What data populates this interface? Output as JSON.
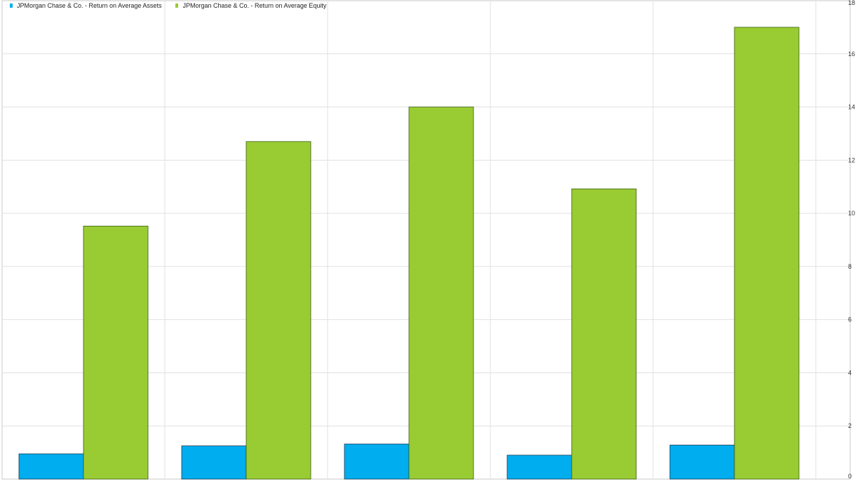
{
  "chart_data": {
    "type": "bar",
    "title": "",
    "xlabel": "",
    "ylabel": "",
    "categories": [
      "",
      "",
      "",
      "",
      ""
    ],
    "series": [
      {
        "name": "JPMorgan Chase & Co. - Return on Average Assets",
        "color": "#00adef",
        "values": [
          0.95,
          1.25,
          1.32,
          0.9,
          1.28
        ]
      },
      {
        "name": "JPMorgan Chase & Co. - Return on Average Equity",
        "color": "#99cc33",
        "values": [
          9.52,
          12.7,
          14.0,
          10.92,
          17.0
        ]
      }
    ],
    "ylim": [
      0,
      18
    ],
    "yticks": [
      "0",
      "2",
      "4",
      "6",
      "8",
      "10",
      "12",
      "14",
      "16",
      "18"
    ],
    "y_axis_position": "right",
    "grid": true,
    "legend_position": "top-left"
  }
}
